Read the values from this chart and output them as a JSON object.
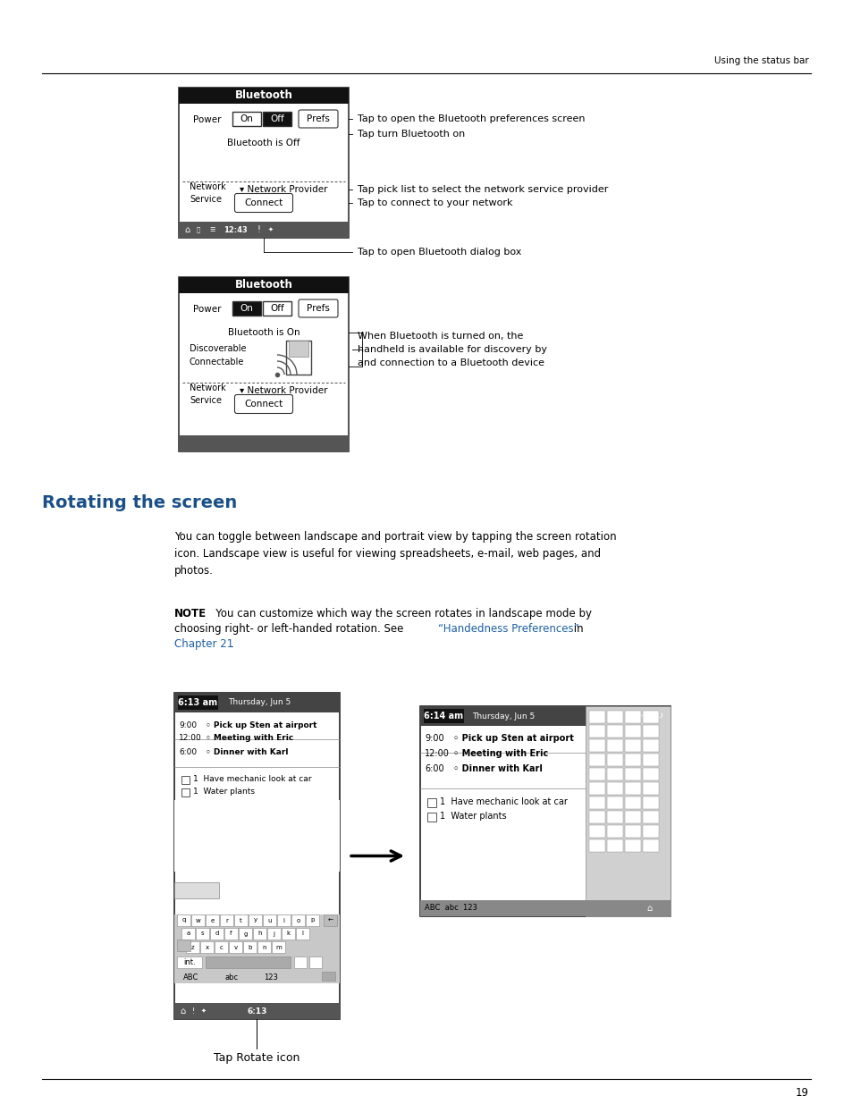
{
  "page_header_right": "Using the status bar",
  "page_number": "19",
  "section_title": "Rotating the screen",
  "body_text1": "You can toggle between landscape and portrait view by tapping the screen rotation\nicon. Landscape view is useful for viewing spreadsheets, e-mail, web pages, and\nphotos.",
  "note_bold": "NOTE",
  "note_rest": "   You can customize which way the screen rotates in landscape mode by\nchoosing right- or left-handed rotation. See “Handedness Preferences” in",
  "note_link2": "Chapter 21",
  "note_link1_text": "“Handedness Preferences”",
  "annot1": "Tap to open the Bluetooth preferences screen",
  "annot2": "Tap turn Bluetooth on",
  "annot3": "Tap pick list to select the network service provider",
  "annot4": "Tap to connect to your network",
  "annot5": "Tap to open Bluetooth dialog box",
  "annot6": "When Bluetooth is turned on, the\nhandheld is available for discovery by\nand connection to a Bluetooth device",
  "tap_rotate": "Tap Rotate icon",
  "blue_color": "#1a4f8a",
  "link_color": "#1a5fa8",
  "black": "#000000",
  "bg_color": "#ffffff"
}
